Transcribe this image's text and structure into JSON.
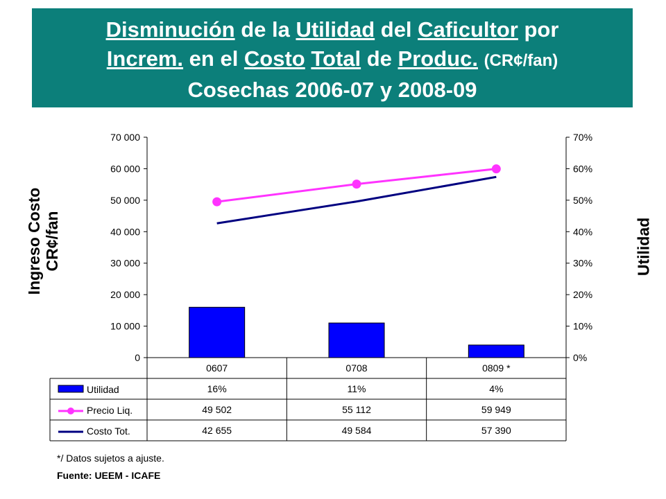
{
  "title": {
    "line1": [
      {
        "text": "Disminución",
        "u": true
      },
      {
        "text": " de la ",
        "u": false
      },
      {
        "text": "Utilidad",
        "u": true
      },
      {
        "text": " del ",
        "u": false
      },
      {
        "text": "Caficultor",
        "u": true
      },
      {
        "text": " por",
        "u": false
      }
    ],
    "line2": [
      {
        "text": "Increm.",
        "u": true
      },
      {
        "text": " en el ",
        "u": false
      },
      {
        "text": "Costo",
        "u": true
      },
      {
        "text": " ",
        "u": false
      },
      {
        "text": "Total",
        "u": true
      },
      {
        "text": " de ",
        "u": false
      },
      {
        "text": "Produc.",
        "u": true
      },
      {
        "text": " ",
        "u": false
      }
    ],
    "line2_unit": "(CR¢/fan)",
    "line3": "Cosechas 2006-07 y 2008-09"
  },
  "chart_data": {
    "type": "bar",
    "categories": [
      "0607",
      "0708",
      "0809 *"
    ],
    "series": [
      {
        "name": "Utilidad",
        "kind": "bar",
        "axis": "right",
        "color": "#0000ff",
        "values": [
          0.16,
          0.11,
          0.04
        ],
        "labels": [
          "16%",
          "11%",
          "4%"
        ]
      },
      {
        "name": "Precio Liq.",
        "kind": "line-marker",
        "axis": "left",
        "color": "#ff33ff",
        "values": [
          49502,
          55112,
          59949
        ],
        "labels": [
          "49 502",
          "55 112",
          "59 949"
        ]
      },
      {
        "name": "Costo Tot.",
        "kind": "line",
        "axis": "left",
        "color": "#000080",
        "values": [
          42655,
          49584,
          57390
        ],
        "labels": [
          "42 655",
          "49 584",
          "57 390"
        ]
      }
    ],
    "ylabel_left_line1": "Ingreso Costo",
    "ylabel_left_line2": "CR¢/fan",
    "ylabel_right": "Utilidad",
    "ylim_left": [
      0,
      70000
    ],
    "ylim_right": [
      0,
      0.7
    ],
    "left_ticks": [
      "0",
      "10 000",
      "20 000",
      "30 000",
      "40 000",
      "50 000",
      "60 000",
      "70 000"
    ],
    "right_ticks": [
      "0%",
      "10%",
      "20%",
      "30%",
      "40%",
      "50%",
      "60%",
      "70%"
    ],
    "grid": false,
    "legend": "data-table"
  },
  "footnote": "*/ Datos sujetos a ajuste.",
  "source": "Fuente: UEEM - ICAFE"
}
